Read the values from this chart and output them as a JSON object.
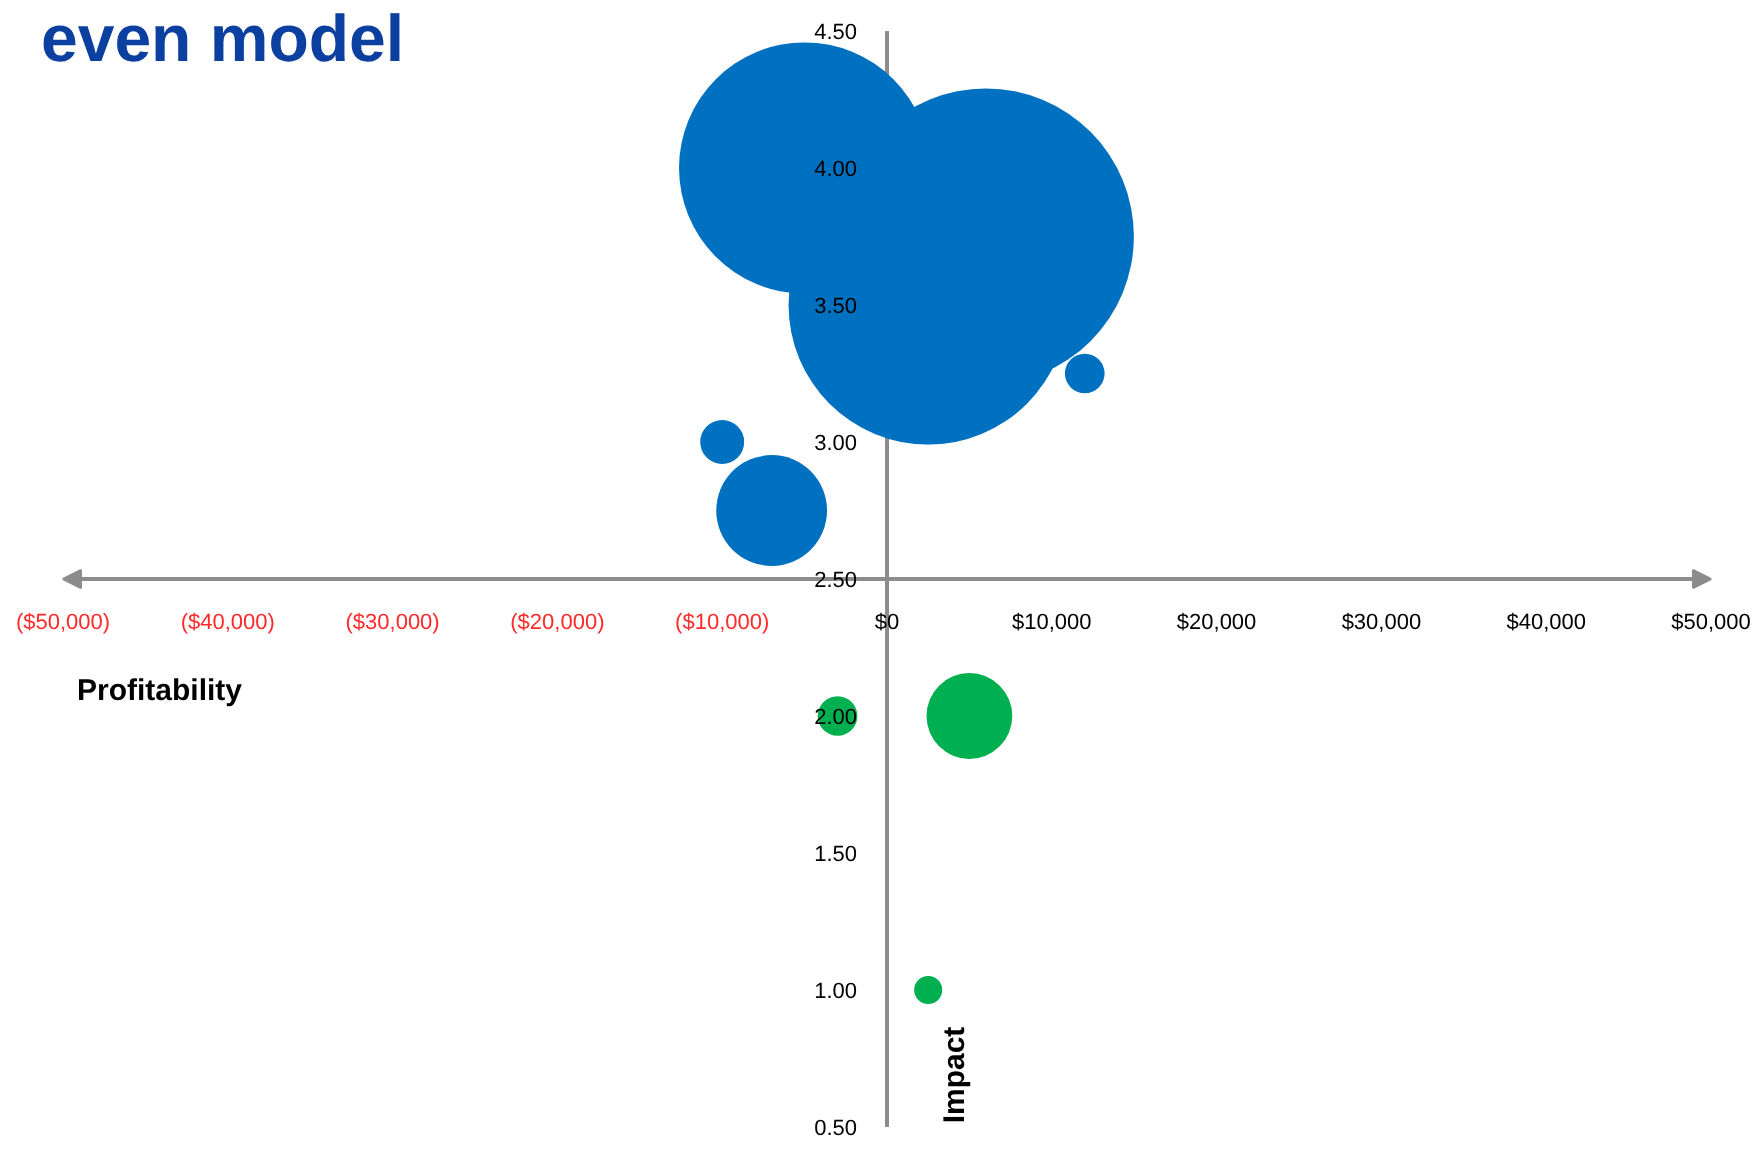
{
  "chart_data": {
    "type": "bubble",
    "title": "even model",
    "xlabel": "Profitability",
    "ylabel": "Impact",
    "marker": "circle",
    "xlim": [
      -50000,
      50000
    ],
    "ylim": [
      0.5,
      4.5
    ],
    "xticks": [
      {
        "value": -50000,
        "label": "($50,000)"
      },
      {
        "value": -40000,
        "label": "($40,000)"
      },
      {
        "value": -30000,
        "label": "($30,000)"
      },
      {
        "value": -20000,
        "label": "($20,000)"
      },
      {
        "value": -10000,
        "label": "($10,000)"
      },
      {
        "value": 0,
        "label": "$0"
      },
      {
        "value": 10000,
        "label": "$10,000"
      },
      {
        "value": 20000,
        "label": "$20,000"
      },
      {
        "value": 30000,
        "label": "$30,000"
      },
      {
        "value": 40000,
        "label": "$40,000"
      },
      {
        "value": 50000,
        "label": "$50,000"
      }
    ],
    "yticks": [
      {
        "value": 0.5,
        "label": "0.50"
      },
      {
        "value": 1.0,
        "label": "1.00"
      },
      {
        "value": 1.5,
        "label": "1.50"
      },
      {
        "value": 2.0,
        "label": "2.00"
      },
      {
        "value": 2.5,
        "label": "2.50"
      },
      {
        "value": 3.0,
        "label": "3.00"
      },
      {
        "value": 3.5,
        "label": "3.50"
      },
      {
        "value": 4.0,
        "label": "4.00"
      },
      {
        "value": 4.5,
        "label": "4.50"
      }
    ],
    "series": [
      {
        "color": "#0070c0",
        "x": [
          -5000,
          6000,
          2500,
          12000,
          -10000,
          -7000
        ],
        "values": [
          4.0,
          3.75,
          3.5,
          3.25,
          3.0,
          2.75
        ],
        "sizes": [
          0.72,
          1,
          0.89,
          0.018,
          0.022,
          0.14
        ]
      },
      {
        "color": "#00b050",
        "x": [
          -3000,
          5000,
          2500
        ],
        "values": [
          2.0,
          2.0,
          1.0
        ],
        "sizes": [
          0.018,
          0.084,
          0.009
        ]
      }
    ]
  }
}
